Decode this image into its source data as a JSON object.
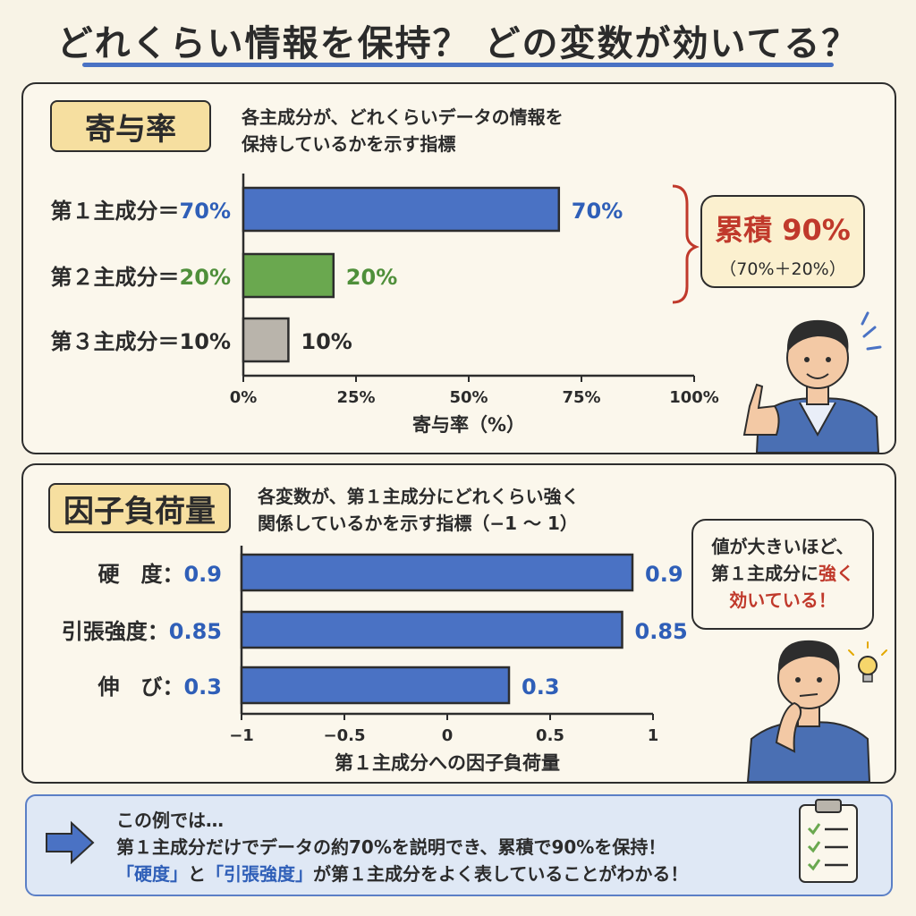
{
  "title": "どれくらい情報を保持？ どの変数が効いてる？",
  "contribution": {
    "tag": "寄与率",
    "description_lines": [
      "各主成分が、どれくらいデータの情報を",
      "保持しているかを示す指標"
    ],
    "cumulative_label": "累積 90%",
    "cumulative_detail": "（70%＋20%）"
  },
  "loading": {
    "tag": "因子負荷量",
    "description_lines": [
      "各変数が、第１主成分にどれくらい強く",
      "関係しているかを示す指標（−1 ～ 1）"
    ],
    "bubble": {
      "line1": "値が大きいほど、",
      "line2_a": "第１主成分に",
      "line2_b": "強く",
      "line3_a": "効いている",
      "line3_b": "！"
    }
  },
  "summary": {
    "line1": "この例では…",
    "line2": "第１主成分だけでデータの約70%を説明でき、累積で90%を保持！",
    "line3_q1": "「硬度」",
    "line3_mid": "と",
    "line3_q2": "「引張強度」",
    "line3_end": "が第１主成分をよく表していることがわかる！"
  },
  "colors": {
    "blue": "#4a72c4",
    "green": "#6aa84f",
    "gray": "#b9b4ab",
    "blue_text": "#2f5fb8",
    "green_text": "#4f8f3a",
    "red": "#c0392b"
  },
  "chart_data": [
    {
      "type": "bar",
      "orientation": "horizontal",
      "categories": [
        "第１主成分＝",
        "第２主成分＝",
        "第３主成分＝"
      ],
      "category_value_labels": [
        "70%",
        "20%",
        "10%"
      ],
      "values": [
        70,
        20,
        10
      ],
      "data_labels": [
        "70%",
        "20%",
        "10%"
      ],
      "xlim": [
        0,
        100
      ],
      "x_ticks": [
        0,
        25,
        50,
        75,
        100
      ],
      "x_tick_labels": [
        "0%",
        "25%",
        "50%",
        "75%",
        "100%"
      ],
      "xlabel": "寄与率（%）"
    },
    {
      "type": "bar",
      "orientation": "horizontal",
      "categories": [
        "硬　度：",
        "引張強度：",
        "伸　び："
      ],
      "category_value_labels": [
        "0.9",
        "0.85",
        "0.3"
      ],
      "values": [
        0.9,
        0.85,
        0.3
      ],
      "data_labels": [
        "0.9",
        "0.85",
        "0.3"
      ],
      "xlim": [
        -1,
        1
      ],
      "x_ticks": [
        -1,
        -0.5,
        0,
        0.5,
        1
      ],
      "x_tick_labels": [
        "−1",
        "−0.5",
        "0",
        "0.5",
        "1"
      ],
      "xlabel": "第１主成分への因子負荷量"
    }
  ]
}
